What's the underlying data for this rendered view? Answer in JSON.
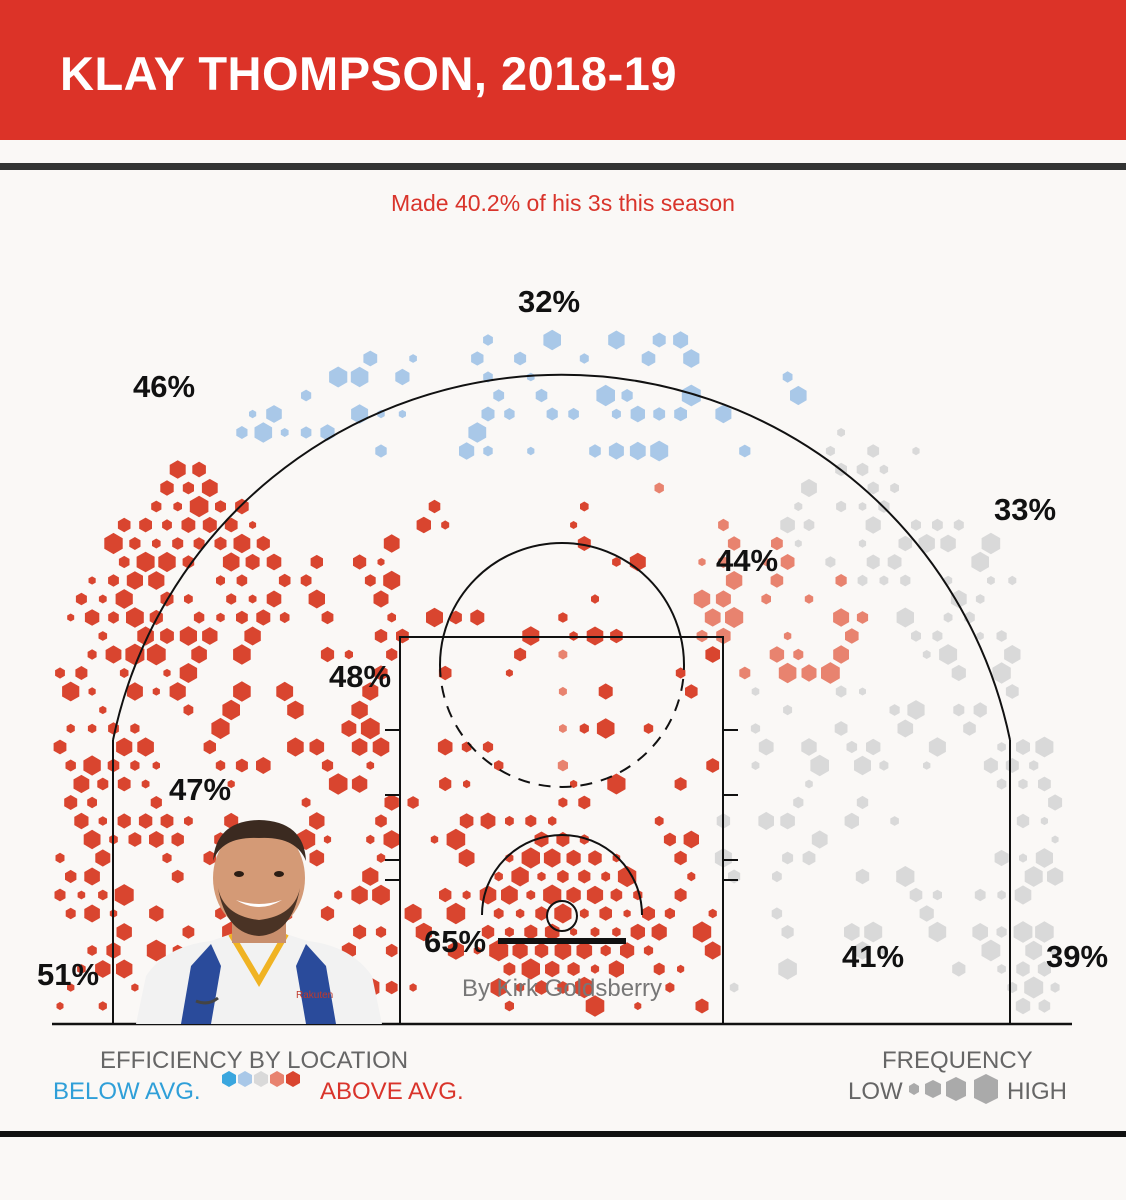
{
  "header": {
    "title": "KLAY THOMPSON, 2018-19"
  },
  "subtitle": "Made 40.2% of his 3s this season",
  "credit": "By Kirk Goldsberry",
  "legend": {
    "efficiency_title": "EFFICIENCY BY LOCATION",
    "below_label": "BELOW AVG.",
    "above_label": "ABOVE AVG.",
    "frequency_title": "FREQUENCY",
    "low_label": "LOW",
    "high_label": "HIGH"
  },
  "colors": {
    "banner": "#dc3328",
    "above_avg": "#d9452f",
    "slightly_above": "#e8836f",
    "average": "#d9d9d9",
    "slightly_below": "#a9c8e8",
    "below_avg": "#3aa6de",
    "text_red": "#d9342b",
    "text_blue": "#2f9fd8"
  },
  "chart_data": {
    "type": "heatmap",
    "title": "KLAY THOMPSON, 2018-19",
    "subtitle": "Made 40.2% of his 3s this season",
    "zones": [
      {
        "name": "left-corner-3",
        "pct": "51%",
        "efficiency": "above"
      },
      {
        "name": "left-wing-3",
        "pct": "46%",
        "efficiency": "above"
      },
      {
        "name": "top-of-key-3",
        "pct": "32%",
        "efficiency": "below"
      },
      {
        "name": "right-wing-3",
        "pct": "33%",
        "efficiency": "average"
      },
      {
        "name": "right-corner-3",
        "pct": "39%",
        "efficiency": "average"
      },
      {
        "name": "left-midrange-upper",
        "pct": "48%",
        "efficiency": "above"
      },
      {
        "name": "left-midrange-baseline",
        "pct": "47%",
        "efficiency": "above"
      },
      {
        "name": "right-elbow-midrange",
        "pct": "44%",
        "efficiency": "slightly-above"
      },
      {
        "name": "right-baseline-midrange",
        "pct": "41%",
        "efficiency": "average"
      },
      {
        "name": "restricted-area",
        "pct": "65%",
        "efficiency": "above"
      }
    ],
    "legend": {
      "efficiency_scale": [
        "below",
        "slightly-below",
        "average",
        "slightly-above",
        "above"
      ],
      "frequency_scale": [
        "low",
        "medium",
        "high"
      ]
    }
  }
}
